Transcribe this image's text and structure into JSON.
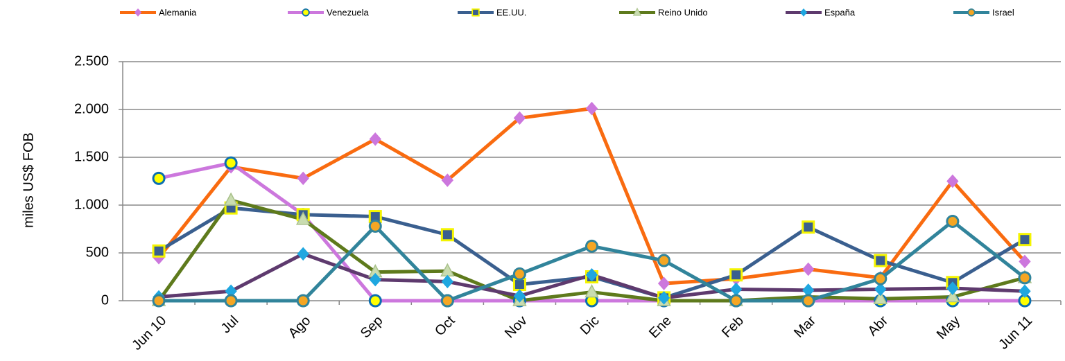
{
  "chart_data": {
    "type": "line",
    "ylabel": "miles US$ FOB",
    "categories": [
      "Jun 10",
      "Jul",
      "Ago",
      "Sep",
      "Oct",
      "Nov",
      "Dic",
      "Ene",
      "Feb",
      "Mar",
      "Abr",
      "May",
      "Jun 11"
    ],
    "ylim": [
      0,
      2500
    ],
    "yticks": [
      0,
      500,
      {
        "value": 1000,
        "label": "1.000"
      },
      {
        "value": 1500,
        "label": "1.500"
      },
      {
        "value": 2000,
        "label": "2.000"
      },
      {
        "value": 2500,
        "label": "2.500"
      }
    ],
    "grid": true,
    "legend": "top",
    "series": [
      {
        "name": "Alemania",
        "color": "#f96b10",
        "marker": "diamond",
        "marker_color": "#cc77dd",
        "values": [
          450,
          1400,
          1280,
          1690,
          1260,
          1910,
          2010,
          180,
          230,
          330,
          240,
          1250,
          410
        ]
      },
      {
        "name": "Venezuela",
        "color": "#cc77dd",
        "marker": "circle",
        "marker_color": "#0b6fb0",
        "values": [
          1280,
          1440,
          900,
          0,
          0,
          0,
          0,
          0,
          0,
          0,
          0,
          0,
          0
        ]
      },
      {
        "name": "EE.UU.",
        "color": "#3a5f8f",
        "marker": "square",
        "marker_color": "#f4f400",
        "values": [
          520,
          970,
          900,
          880,
          690,
          170,
          250,
          30,
          270,
          770,
          420,
          190,
          640
        ]
      },
      {
        "name": "Reino Unido",
        "color": "#5e7a1c",
        "marker": "triangle",
        "marker_color": "#c9dcb0",
        "values": [
          0,
          1050,
          850,
          300,
          310,
          0,
          90,
          0,
          0,
          40,
          20,
          40,
          240
        ]
      },
      {
        "name": "España",
        "color": "#5e3a6e",
        "marker": "diamond",
        "marker_color": "#1fa7e0",
        "values": [
          40,
          100,
          490,
          220,
          200,
          50,
          270,
          30,
          120,
          110,
          120,
          130,
          100
        ]
      },
      {
        "name": "Israel",
        "color": "#31849b",
        "marker": "circle",
        "marker_color": "#f5a623",
        "values": [
          0,
          0,
          0,
          780,
          0,
          280,
          570,
          420,
          0,
          0,
          230,
          830,
          240
        ]
      }
    ]
  }
}
